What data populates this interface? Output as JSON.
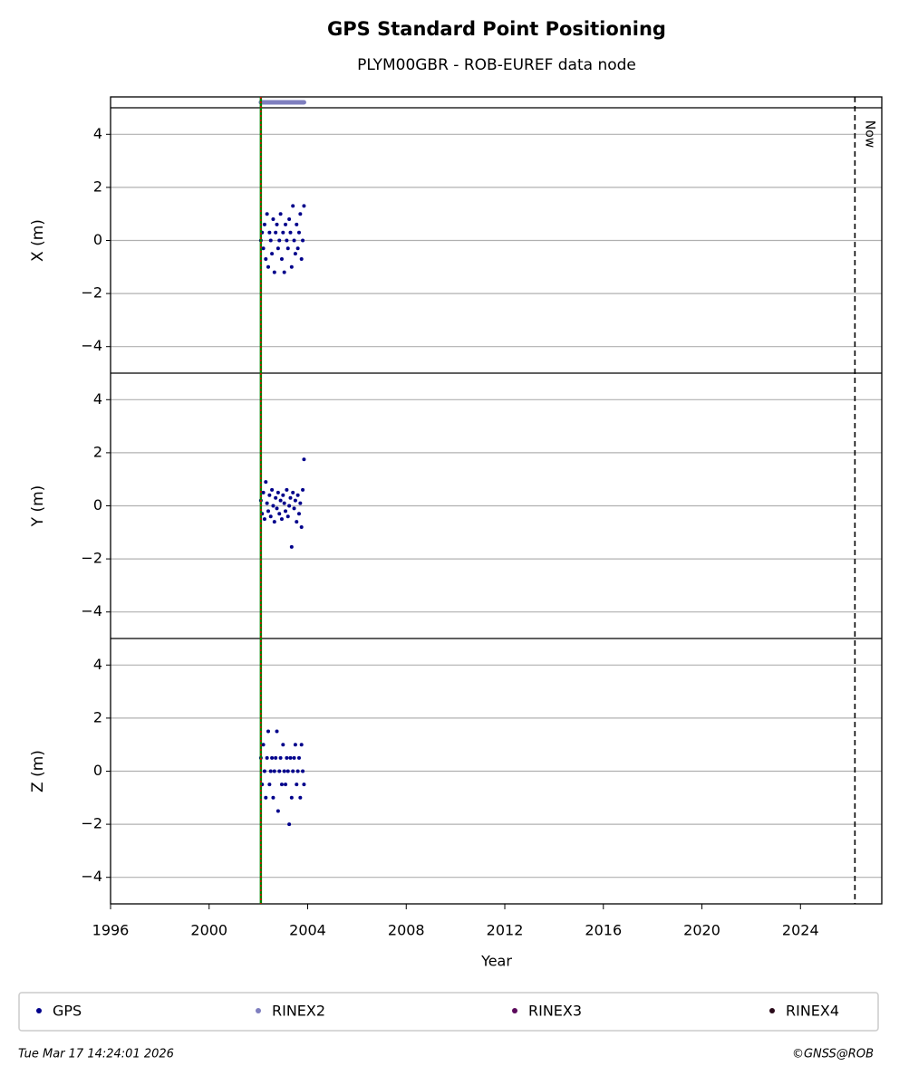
{
  "chart_data": {
    "type": "scatter",
    "title": "GPS Standard Point Positioning",
    "subtitle": "PLYM00GBR - ROB-EUREF data node",
    "xlabel": "Year",
    "xlim": [
      1996,
      2027.3
    ],
    "xticks": [
      1996,
      2000,
      2004,
      2008,
      2012,
      2016,
      2020,
      2024
    ],
    "ylim": [
      -5,
      5
    ],
    "yticks": [
      {
        "value": -4,
        "label": "−4"
      },
      {
        "value": -2,
        "label": "−2"
      },
      0,
      2,
      4
    ],
    "grid": true,
    "legend": "bottom",
    "now_label": "Now",
    "now_x": 2026.21,
    "station_line_x": 2002.1,
    "footer_left": "Tue Mar 17 14:24:01 2026",
    "footer_right": "©GNSS@ROB",
    "x": [
      2002.1,
      2002.15,
      2002.2,
      2002.25,
      2002.3,
      2002.35,
      2002.4,
      2002.45,
      2002.5,
      2002.55,
      2002.6,
      2002.65,
      2002.7,
      2002.75,
      2002.8,
      2002.85,
      2002.9,
      2002.95,
      2003.0,
      2003.05,
      2003.1,
      2003.15,
      2003.2,
      2003.25,
      2003.3,
      2003.35,
      2003.4,
      2003.45,
      2003.5,
      2003.55,
      2003.6,
      2003.65,
      2003.7,
      2003.75,
      2003.8,
      2003.85
    ],
    "panels": [
      {
        "ylabel": "X (m)",
        "values": [
          0,
          0.3,
          -0.3,
          0.6,
          -0.7,
          1,
          -1,
          0.3,
          0,
          -0.5,
          0.8,
          -1.2,
          0.3,
          0.6,
          -0.3,
          0,
          1,
          -0.7,
          0.3,
          -1.2,
          0.6,
          0,
          -0.3,
          0.8,
          0.3,
          -1,
          1.3,
          0,
          -0.5,
          0.6,
          -0.3,
          0.3,
          1,
          -0.7,
          0,
          1.3
        ]
      },
      {
        "ylabel": "Y (m)",
        "values": [
          0.2,
          -0.3,
          0.5,
          -0.5,
          0.9,
          0.1,
          -0.2,
          0.4,
          -0.4,
          0.6,
          0,
          -0.6,
          0.3,
          -0.1,
          0.5,
          -0.3,
          0.2,
          -0.5,
          0.4,
          0.1,
          -0.2,
          0.6,
          -0.4,
          0,
          0.3,
          -1.55,
          0.5,
          -0.1,
          0.2,
          -0.6,
          0.4,
          -0.3,
          0.1,
          -0.8,
          0.6,
          1.75
        ]
      },
      {
        "ylabel": "Z (m)",
        "values": [
          0.5,
          -0.5,
          1,
          0,
          -1,
          0.5,
          1.5,
          -0.5,
          0,
          0.5,
          -1,
          0,
          0.5,
          1.5,
          -1.5,
          0,
          0.5,
          -0.5,
          1,
          0,
          -0.5,
          0.5,
          0,
          -2,
          0.5,
          -1,
          0,
          0.5,
          1,
          -0.5,
          0,
          0.5,
          -1,
          1,
          0,
          -0.5
        ]
      }
    ],
    "series": [
      {
        "name": "GPS",
        "color": "#00008b"
      },
      {
        "name": "RINEX2",
        "color": "#7f7fbf",
        "x": [
          2002.1,
          2003.85
        ]
      },
      {
        "name": "RINEX3",
        "color": "#5c0a5c"
      },
      {
        "name": "RINEX4",
        "color": "#2a0a1a"
      }
    ]
  }
}
